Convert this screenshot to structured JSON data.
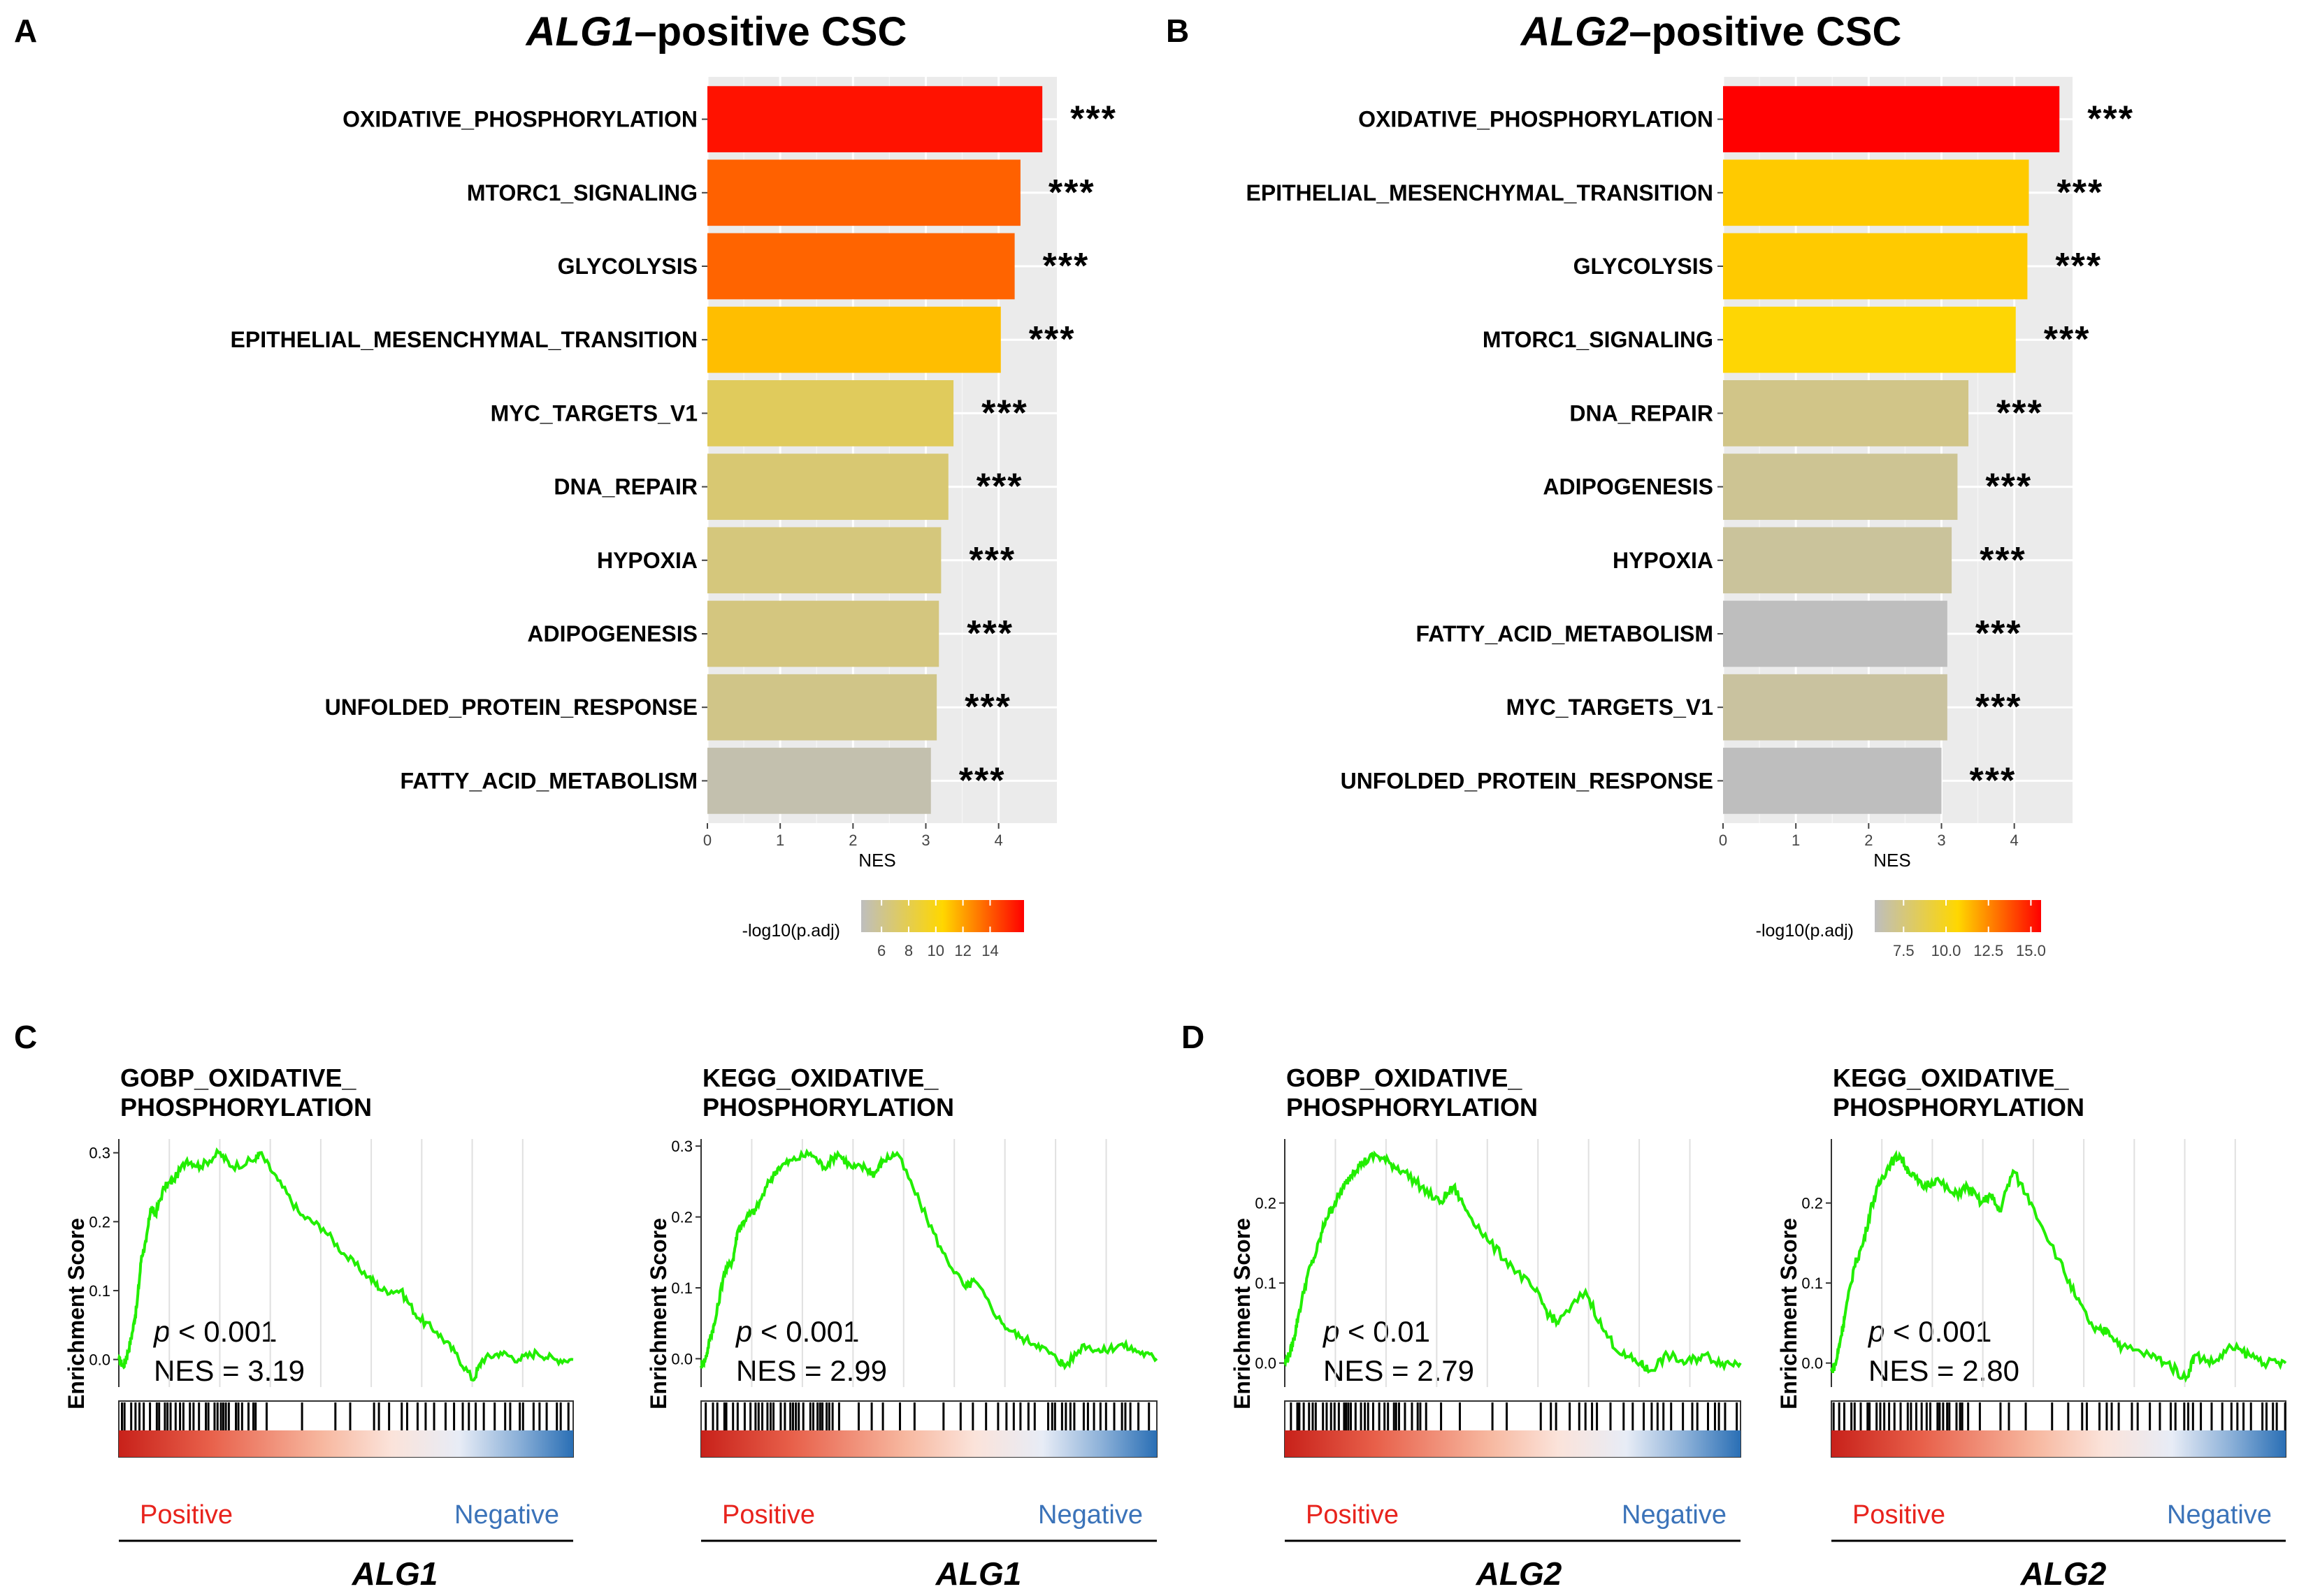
{
  "panels": {
    "A": {
      "letter": "A",
      "title_gene": "ALG1",
      "title_rest": "–positive CSC",
      "stars": "***",
      "xlabel": "NES",
      "legend_title": "-log10(p.adj)",
      "legend_ticks": [
        "6",
        "8",
        "10",
        "12",
        "14"
      ]
    },
    "B": {
      "letter": "B",
      "title_gene": "ALG2",
      "title_rest": "–positive CSC",
      "stars": "***",
      "xlabel": "NES",
      "legend_title": "-log10(p.adj)",
      "legend_ticks": [
        "7.5",
        "10.0",
        "12.5",
        "15.0"
      ]
    },
    "C": {
      "letter": "C",
      "gene": "ALG1"
    },
    "D": {
      "letter": "D",
      "gene": "ALG2"
    }
  },
  "gsea_common": {
    "ylabel": "Enrichment Score",
    "positive_label": "Positive",
    "negative_label": "Negative"
  },
  "gsea_texts": [
    {
      "title1": "GOBP_OXIDATIVE_",
      "title2": "PHOSPHORYLATION",
      "p_italic": "p",
      "p_rest": " < 0.001",
      "nes": "NES = 3.19",
      "yticks": [
        "0.3",
        "0.2",
        "0.1",
        "0.0"
      ]
    },
    {
      "title1": "KEGG_OXIDATIVE_",
      "title2": "PHOSPHORYLATION",
      "p_italic": "p",
      "p_rest": " < 0.001",
      "nes": "NES = 2.99",
      "yticks": [
        "0.3",
        "0.2",
        "0.1",
        "0.0"
      ]
    },
    {
      "title1": "GOBP_OXIDATIVE_",
      "title2": "PHOSPHORYLATION",
      "p_italic": "p",
      "p_rest": " < 0.01",
      "nes": "NES = 2.79",
      "yticks": [
        "0.2",
        "0.1",
        "0.0"
      ]
    },
    {
      "title1": "KEGG_OXIDATIVE_",
      "title2": "PHOSPHORYLATION",
      "p_italic": "p",
      "p_rest": " < 0.001",
      "nes": "NES = 2.80",
      "yticks": [
        "0.2",
        "0.1",
        "0.0"
      ]
    }
  ],
  "colors": {
    "bar_high": "#ff0000",
    "bar_mid": "#ffd700",
    "bar_low": "#bebebe",
    "panel_bg": "#ebebeb",
    "es_line": "#22ee00",
    "positive": "#e8231d",
    "negative": "#3b73b9"
  },
  "chart_data": [
    {
      "panel": "A",
      "type": "bar",
      "orientation": "horizontal",
      "title": "ALG1–positive CSC",
      "xlabel": "NES",
      "ylabel": "",
      "xlim": [
        0,
        4.8
      ],
      "xticks": [
        0,
        1,
        2,
        3,
        4
      ],
      "categories": [
        "OXIDATIVE_PHOSPHORYLATION",
        "MTORC1_SIGNALING",
        "GLYCOLYSIS",
        "EPITHELIAL_MESENCHYMAL_TRANSITION",
        "MYC_TARGETS_V1",
        "DNA_REPAIR",
        "HYPOXIA",
        "ADIPOGENESIS",
        "UNFOLDED_PROTEIN_RESPONSE",
        "FATTY_ACID_METABOLISM"
      ],
      "values": [
        4.6,
        4.3,
        4.22,
        4.03,
        3.38,
        3.31,
        3.21,
        3.18,
        3.15,
        3.07
      ],
      "color_values": [
        16.0,
        13.8,
        13.7,
        11.2,
        7.6,
        6.9,
        6.6,
        6.5,
        6.2,
        5.0
      ],
      "annotations": [
        "***",
        "***",
        "***",
        "***",
        "***",
        "***",
        "***",
        "***",
        "***",
        "***"
      ],
      "colorbar": {
        "label": "-log10(p.adj)",
        "range": [
          4.5,
          16.5
        ],
        "ticks": [
          6,
          8,
          10,
          12,
          14
        ]
      }
    },
    {
      "panel": "B",
      "type": "bar",
      "orientation": "horizontal",
      "title": "ALG2–positive CSC",
      "xlabel": "NES",
      "ylabel": "",
      "xlim": [
        0,
        4.8
      ],
      "xticks": [
        0,
        1,
        2,
        3,
        4
      ],
      "categories": [
        "OXIDATIVE_PHOSPHORYLATION",
        "EPITHELIAL_MESENCHYMAL_TRANSITION",
        "GLYCOLYSIS",
        "MTORC1_SIGNALING",
        "DNA_REPAIR",
        "ADIPOGENESIS",
        "HYPOXIA",
        "FATTY_ACID_METABOLISM",
        "MYC_TARGETS_V1",
        "UNFOLDED_PROTEIN_RESPONSE"
      ],
      "values": [
        4.62,
        4.2,
        4.18,
        4.02,
        3.37,
        3.22,
        3.14,
        3.08,
        3.08,
        3.0
      ],
      "color_values": [
        15.6,
        11.0,
        11.0,
        10.6,
        7.2,
        6.9,
        6.7,
        5.8,
        6.6,
        5.8
      ],
      "annotations": [
        "***",
        "***",
        "***",
        "***",
        "***",
        "***",
        "***",
        "***",
        "***",
        "***"
      ],
      "colorbar": {
        "label": "-log10(p.adj)",
        "range": [
          5.8,
          15.6
        ],
        "ticks": [
          7.5,
          10.0,
          12.5,
          15.0
        ]
      }
    },
    {
      "panel": "C-left",
      "type": "line",
      "title": "GOBP_OXIDATIVE_PHOSPHORYLATION",
      "ylabel": "Enrichment Score",
      "xlabel": "ALG1",
      "ylim": [
        -0.04,
        0.32
      ],
      "yticks": [
        0.0,
        0.1,
        0.2,
        0.3
      ],
      "x": [
        0,
        0.01,
        0.02,
        0.03,
        0.04,
        0.05,
        0.06,
        0.07,
        0.08,
        0.1,
        0.12,
        0.15,
        0.18,
        0.22,
        0.25,
        0.3,
        0.31,
        0.35,
        0.4,
        0.45,
        0.5,
        0.55,
        0.58,
        0.62,
        0.66,
        0.7,
        0.74,
        0.78,
        0.8,
        0.84,
        0.88,
        0.92,
        0.96,
        1.0
      ],
      "y": [
        0.0,
        -0.01,
        0.01,
        0.04,
        0.08,
        0.15,
        0.17,
        0.22,
        0.21,
        0.25,
        0.26,
        0.29,
        0.28,
        0.3,
        0.28,
        0.29,
        0.3,
        0.26,
        0.21,
        0.19,
        0.15,
        0.12,
        0.1,
        0.1,
        0.06,
        0.04,
        0.01,
        -0.03,
        0.0,
        0.01,
        0.0,
        0.01,
        0.0,
        0.0
      ],
      "pvalue": "< 0.001",
      "nes": 3.19
    },
    {
      "panel": "C-right",
      "type": "line",
      "title": "KEGG_OXIDATIVE_PHOSPHORYLATION",
      "ylabel": "Enrichment Score",
      "xlabel": "ALG1",
      "ylim": [
        -0.04,
        0.31
      ],
      "yticks": [
        0.0,
        0.1,
        0.2,
        0.3
      ],
      "x": [
        0,
        0.01,
        0.02,
        0.03,
        0.05,
        0.07,
        0.08,
        0.1,
        0.12,
        0.15,
        0.17,
        0.2,
        0.24,
        0.27,
        0.3,
        0.33,
        0.36,
        0.38,
        0.4,
        0.43,
        0.48,
        0.53,
        0.58,
        0.6,
        0.66,
        0.7,
        0.74,
        0.78,
        0.8,
        0.84,
        0.88,
        0.92,
        0.96,
        1.0
      ],
      "y": [
        -0.01,
        0.0,
        0.03,
        0.05,
        0.12,
        0.14,
        0.18,
        0.2,
        0.21,
        0.25,
        0.27,
        0.28,
        0.29,
        0.27,
        0.29,
        0.27,
        0.27,
        0.26,
        0.28,
        0.29,
        0.22,
        0.15,
        0.1,
        0.11,
        0.05,
        0.03,
        0.02,
        0.0,
        -0.01,
        0.02,
        0.01,
        0.02,
        0.01,
        0.0
      ],
      "pvalue": "< 0.001",
      "nes": 2.99
    },
    {
      "panel": "D-left",
      "type": "line",
      "title": "GOBP_OXIDATIVE_PHOSPHORYLATION",
      "ylabel": "Enrichment Score",
      "xlabel": "ALG2",
      "ylim": [
        -0.03,
        0.28
      ],
      "yticks": [
        0.0,
        0.1,
        0.2
      ],
      "x": [
        0,
        0.01,
        0.02,
        0.03,
        0.05,
        0.07,
        0.09,
        0.11,
        0.13,
        0.15,
        0.17,
        0.2,
        0.23,
        0.26,
        0.3,
        0.34,
        0.37,
        0.4,
        0.45,
        0.5,
        0.55,
        0.58,
        0.6,
        0.66,
        0.7,
        0.74,
        0.78,
        0.8,
        0.84,
        0.88,
        0.92,
        0.96,
        1.0
      ],
      "y": [
        0.0,
        0.01,
        0.03,
        0.06,
        0.11,
        0.14,
        0.18,
        0.2,
        0.22,
        0.24,
        0.25,
        0.26,
        0.25,
        0.24,
        0.22,
        0.2,
        0.22,
        0.19,
        0.15,
        0.12,
        0.09,
        0.06,
        0.05,
        0.09,
        0.04,
        0.01,
        0.0,
        -0.01,
        0.01,
        0.0,
        0.01,
        0.0,
        0.0
      ],
      "pvalue": "< 0.01",
      "nes": 2.79
    },
    {
      "panel": "D-right",
      "type": "line",
      "title": "KEGG_OXIDATIVE_PHOSPHORYLATION",
      "ylabel": "Enrichment Score",
      "xlabel": "ALG2",
      "ylim": [
        -0.03,
        0.28
      ],
      "yticks": [
        0.0,
        0.1,
        0.2
      ],
      "x": [
        0,
        0.01,
        0.02,
        0.03,
        0.05,
        0.07,
        0.09,
        0.11,
        0.13,
        0.15,
        0.17,
        0.2,
        0.23,
        0.27,
        0.3,
        0.33,
        0.35,
        0.37,
        0.4,
        0.44,
        0.5,
        0.54,
        0.58,
        0.61,
        0.64,
        0.7,
        0.74,
        0.78,
        0.8,
        0.84,
        0.88,
        0.92,
        0.96,
        1.0
      ],
      "y": [
        -0.01,
        0.0,
        0.03,
        0.06,
        0.12,
        0.15,
        0.2,
        0.23,
        0.25,
        0.26,
        0.24,
        0.22,
        0.23,
        0.21,
        0.22,
        0.2,
        0.21,
        0.19,
        0.24,
        0.2,
        0.13,
        0.08,
        0.04,
        0.04,
        0.02,
        0.01,
        0.0,
        -0.02,
        0.01,
        0.0,
        0.02,
        0.01,
        0.0,
        0.0
      ],
      "pvalue": "< 0.001",
      "nes": 2.8
    }
  ]
}
